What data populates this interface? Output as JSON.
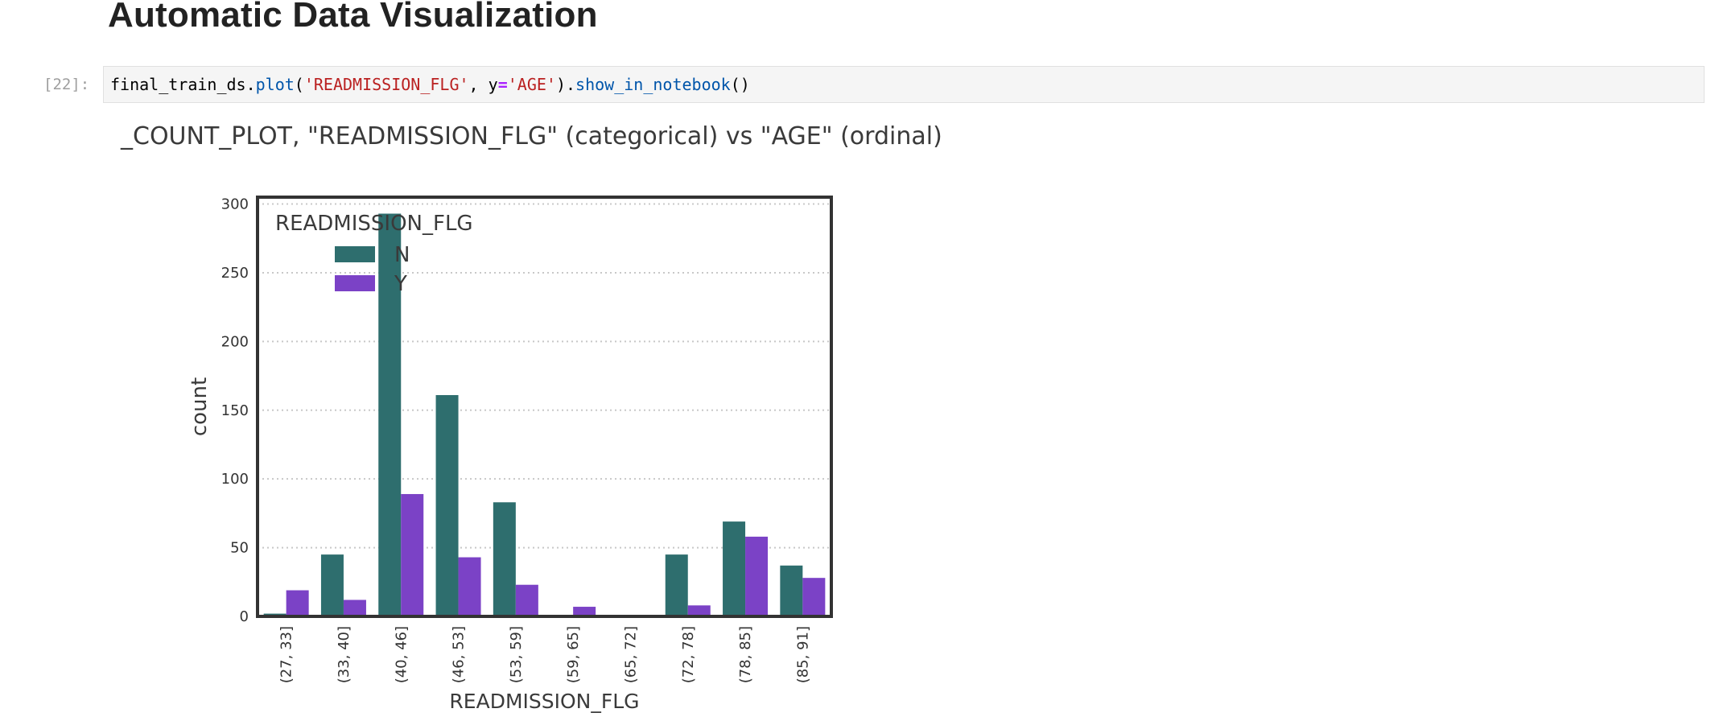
{
  "heading": "Automatic Data Visualization",
  "cell": {
    "prompt": "[22]:",
    "code": {
      "obj": "final_train_ds",
      "dot1": ".",
      "fn1": "plot",
      "open": "(",
      "arg1": "'READMISSION_FLG'",
      "comma": ", ",
      "kw": "y",
      "eq": "=",
      "arg2": "'AGE'",
      "close": ")",
      "dot2": ".",
      "fn2": "show_in_notebook",
      "call": "()"
    }
  },
  "output_title": "_COUNT_PLOT, \"READMISSION_FLG\" (categorical) vs \"AGE\" (ordinal)",
  "colors": {
    "N": "#2e6e6e",
    "Y": "#7b42c6"
  },
  "chart_data": {
    "type": "bar",
    "categories": [
      "(27, 33]",
      "(33, 40]",
      "(40, 46]",
      "(46, 53]",
      "(53, 59]",
      "(59, 65]",
      "(65, 72]",
      "(72, 78]",
      "(78, 85]",
      "(85, 91]"
    ],
    "series": [
      {
        "name": "N",
        "values": [
          2,
          45,
          293,
          161,
          83,
          0,
          0,
          45,
          69,
          37
        ]
      },
      {
        "name": "Y",
        "values": [
          19,
          12,
          89,
          43,
          23,
          7,
          0,
          8,
          58,
          28
        ]
      }
    ],
    "xlabel": "READMISSION_FLG",
    "ylabel": "count",
    "ylim": [
      0,
      305
    ],
    "yticks": [
      0,
      50,
      100,
      150,
      200,
      250,
      300
    ],
    "legend": {
      "title": "READMISSION_FLG",
      "placement": "top-left"
    },
    "grid": "horizontal dotted"
  }
}
